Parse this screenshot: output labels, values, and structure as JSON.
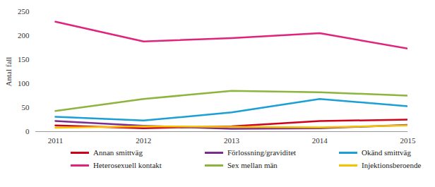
{
  "chart_data": {
    "type": "line",
    "y_label": "Antal fall",
    "x": [
      2011,
      2012,
      2013,
      2014,
      2015
    ],
    "xlim": [
      2011,
      2015
    ],
    "xticks": [
      2011,
      2012,
      2013,
      2014,
      2015
    ],
    "ylim": [
      0,
      250
    ],
    "yticks": [
      0,
      50,
      100,
      150,
      200,
      250
    ],
    "grid": false,
    "legend": "bottom",
    "series": [
      {
        "name": "Annan smittväg",
        "color": "#d0021b",
        "values": [
          13,
          7,
          11,
          22,
          25
        ]
      },
      {
        "name": "Förlossning/graviditet",
        "color": "#7b2d8e",
        "values": [
          22,
          12,
          6,
          7,
          14
        ]
      },
      {
        "name": "Okänd smittväg",
        "color": "#1a9fd6",
        "values": [
          31,
          23,
          40,
          68,
          53
        ]
      },
      {
        "name": "Heterosexuell kontakt",
        "color": "#e0237c",
        "values": [
          229,
          188,
          195,
          205,
          173
        ]
      },
      {
        "name": "Sex mellan män",
        "color": "#8db43c",
        "values": [
          43,
          68,
          85,
          82,
          75
        ]
      },
      {
        "name": "Injektionsberoende",
        "color": "#f5c200",
        "values": [
          8,
          11,
          10,
          9,
          13
        ]
      }
    ]
  }
}
